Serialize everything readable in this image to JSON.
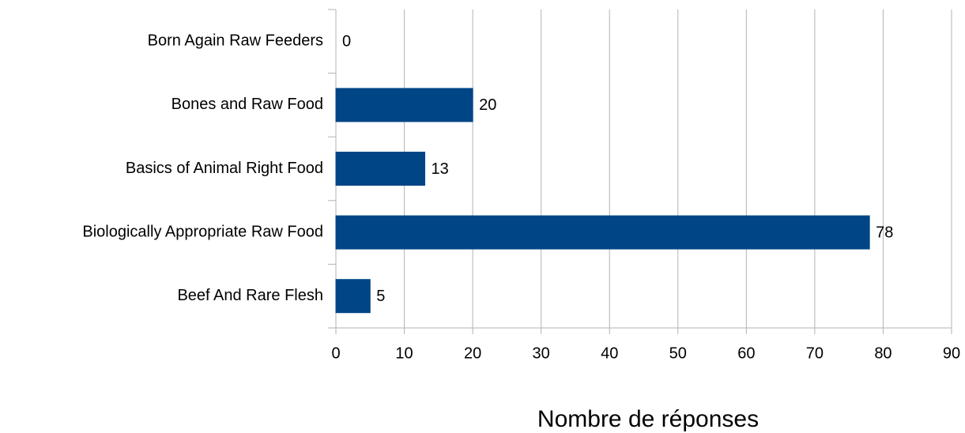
{
  "chart_data": {
    "type": "barh",
    "categories": [
      "Born Again Raw Feeders",
      "Bones and Raw Food",
      "Basics of Animal Right Food",
      "Biologically Appropriate Raw Food",
      "Beef And Rare Flesh"
    ],
    "values": [
      0,
      20,
      13,
      78,
      5
    ],
    "color": "#004586",
    "xlabel": "Nombre de réponses",
    "xlim": [
      0,
      90
    ],
    "xticks": [
      0,
      10,
      20,
      30,
      40,
      50,
      60,
      70,
      80,
      90
    ],
    "grid": true
  }
}
